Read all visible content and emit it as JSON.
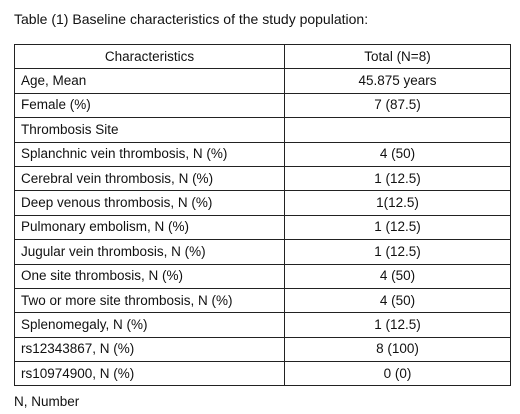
{
  "caption": "Table (1) Baseline characteristics of the study population:",
  "table": {
    "header": [
      "Characteristics",
      "Total (N=8)"
    ],
    "rows": [
      {
        "label": "Age, Mean",
        "value": "45.875 years"
      },
      {
        "label": "Female (%)",
        "value": "7 (87.5)"
      },
      {
        "label": "Thrombosis Site",
        "value": ""
      },
      {
        "label": "Splanchnic vein thrombosis, N (%)",
        "value": "4 (50)"
      },
      {
        "label": "Cerebral vein thrombosis, N (%)",
        "value": "1 (12.5)"
      },
      {
        "label": "Deep venous thrombosis, N (%)",
        "value": "1(12.5)"
      },
      {
        "label": "Pulmonary embolism, N (%)",
        "value": "1 (12.5)"
      },
      {
        "label": "Jugular vein thrombosis, N (%)",
        "value": "1 (12.5)"
      },
      {
        "label": "One site thrombosis, N (%)",
        "value": "4 (50)"
      },
      {
        "label": "Two or more site thrombosis, N (%)",
        "value": "4 (50)"
      },
      {
        "label": "Splenomegaly, N (%)",
        "value": "1 (12.5)"
      },
      {
        "label": "rs12343867, N (%)",
        "value": "8 (100)"
      },
      {
        "label": "rs10974900, N (%)",
        "value": "0 (0)"
      }
    ]
  },
  "footnote": "N, Number"
}
